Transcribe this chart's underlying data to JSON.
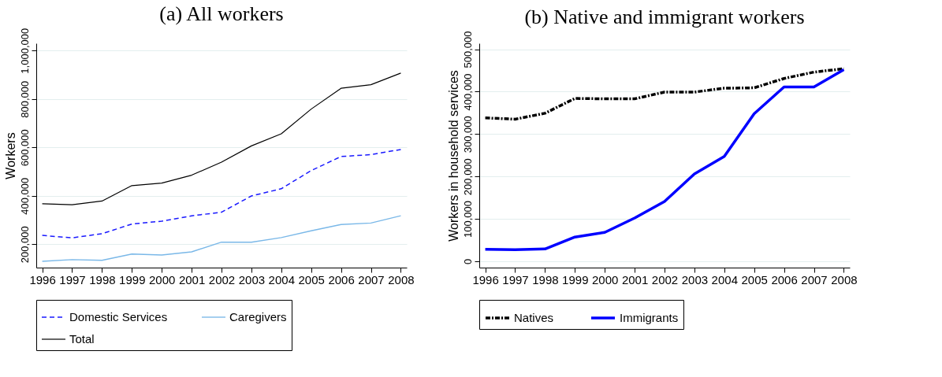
{
  "chart_data": [
    {
      "type": "line",
      "title": "(a) All workers",
      "ylabel": "Workers",
      "x": [
        1996,
        1997,
        1998,
        1999,
        2000,
        2001,
        2002,
        2003,
        2004,
        2005,
        2006,
        2007,
        2008
      ],
      "xlim": [
        1995.8,
        2008.2
      ],
      "xticks": [
        1996,
        1997,
        1998,
        1999,
        2000,
        2001,
        2002,
        2003,
        2004,
        2005,
        2006,
        2007,
        2008
      ],
      "ylim": [
        103000,
        1030000
      ],
      "yticks": [
        {
          "value": 200000,
          "label": "200,000"
        },
        {
          "value": 400000,
          "label": "400,000"
        },
        {
          "value": 600000,
          "label": "600,000"
        },
        {
          "value": 800000,
          "label": "800,000"
        },
        {
          "value": 1000000,
          "label": "1,000,000"
        }
      ],
      "grid": "y",
      "legend": "bottom",
      "marker": "none",
      "series": [
        {
          "name": "Domestic Services",
          "color": "#1a1aff",
          "line_style": "dashed",
          "values": [
            236000,
            226000,
            243000,
            283000,
            295000,
            317000,
            332000,
            399000,
            429000,
            504000,
            562000,
            570000,
            591000
          ]
        },
        {
          "name": "Caregivers",
          "color": "#7ab8e8",
          "line_style": "solid",
          "values": [
            129000,
            136000,
            133000,
            159000,
            155000,
            168000,
            208000,
            208000,
            227000,
            255000,
            281000,
            287000,
            317000
          ]
        },
        {
          "name": "Total",
          "color": "#000000",
          "line_style": "solid",
          "values": [
            367000,
            363000,
            378000,
            442000,
            452000,
            485000,
            539000,
            606000,
            656000,
            758000,
            844000,
            859000,
            907000
          ]
        }
      ]
    },
    {
      "type": "line",
      "title": "(b) Native and immigrant workers",
      "ylabel": "Workers in household services",
      "x": [
        1996,
        1997,
        1998,
        1999,
        2000,
        2001,
        2002,
        2003,
        2004,
        2005,
        2006,
        2007,
        2008
      ],
      "xlim": [
        1995.8,
        2008.2
      ],
      "xticks": [
        1996,
        1997,
        1998,
        1999,
        2000,
        2001,
        2002,
        2003,
        2004,
        2005,
        2006,
        2007,
        2008
      ],
      "ylim": [
        -15000,
        514000
      ],
      "yticks": [
        0,
        {
          "value": 100000,
          "label": "100,000"
        },
        {
          "value": 200000,
          "label": "200,000"
        },
        {
          "value": 300000,
          "label": "300,000"
        },
        {
          "value": 400000,
          "label": "400,000"
        },
        {
          "value": 500000,
          "label": "500,000"
        }
      ],
      "grid": "y",
      "legend": "bottom",
      "marker": "none",
      "series": [
        {
          "name": "Natives",
          "color": "#000000",
          "line_style": "dashdot",
          "values": [
            338000,
            335000,
            349000,
            384000,
            383000,
            383000,
            399000,
            399000,
            408000,
            409000,
            431000,
            446000,
            454000
          ]
        },
        {
          "name": "Immigrants",
          "color": "#0000ff",
          "line_style": "solid",
          "values": [
            28000,
            27000,
            29000,
            57000,
            68000,
            102000,
            141000,
            206000,
            247000,
            348000,
            411000,
            411000,
            452000
          ]
        }
      ]
    }
  ]
}
